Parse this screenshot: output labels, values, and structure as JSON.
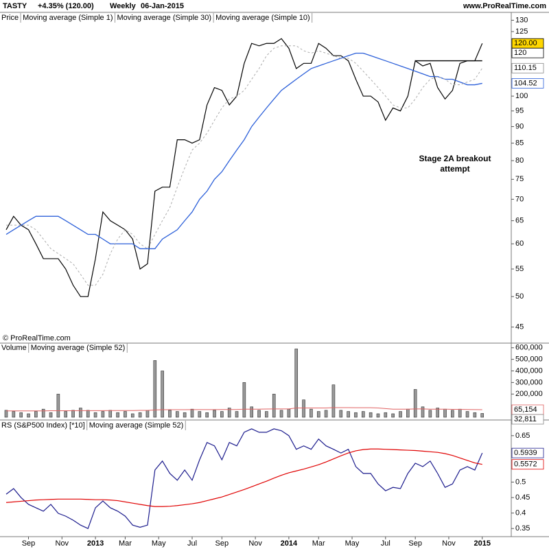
{
  "header": {
    "symbol": "TASTY",
    "change": "+4.35% (120.00)",
    "period": "Weekly",
    "date": "06-Jan-2015",
    "site": "www.ProRealTime.com",
    "copyright": "© ProRealTime.com"
  },
  "chart_data": [
    {
      "type": "line",
      "log": true,
      "xlim": [
        -1.66,
        135.8
      ],
      "ylim": [
        43.9,
        133.6
      ],
      "yticks": [
        45,
        50,
        55,
        60,
        65,
        70,
        75,
        80,
        85,
        90,
        95,
        100,
        115,
        125,
        130
      ],
      "legend": [
        {
          "name": "Price",
          "color": "#000000"
        },
        {
          "name": "Moving average (Simple 1)",
          "color": "#1a1a8c"
        },
        {
          "name": "Moving average (Simple 30)",
          "color": "#2b5fd9"
        },
        {
          "name": "Moving average (Simple 10)",
          "color": "#aaaaaa"
        }
      ],
      "annotation": "Stage 2A breakout attempt",
      "hline": {
        "y": 113,
        "x": [
          110,
          128
        ]
      },
      "last_labels": [
        {
          "value": 120,
          "label": "120.00",
          "color": "#000000",
          "bg": "#ffd700"
        },
        {
          "value": 120,
          "label": "120",
          "color": "#000000",
          "bg": "#ffffff"
        },
        {
          "value": 110.15,
          "label": "110.15",
          "color": "#888888",
          "bg": "#ffffff"
        },
        {
          "value": 104.52,
          "label": "104.52",
          "color": "#2b5fd9",
          "bg": "#ffffff"
        }
      ],
      "x": [
        0,
        2,
        4,
        6,
        8,
        10,
        12,
        14,
        16,
        18,
        20,
        22,
        24,
        26,
        28,
        30,
        32,
        34,
        36,
        38,
        40,
        42,
        44,
        46,
        48,
        50,
        52,
        54,
        56,
        58,
        60,
        62,
        64,
        66,
        68,
        70,
        72,
        74,
        76,
        78,
        80,
        82,
        84,
        86,
        88,
        90,
        92,
        94,
        96,
        98,
        100,
        102,
        104,
        106,
        108,
        110,
        112,
        114,
        116,
        118,
        120,
        122,
        124,
        126,
        128
      ],
      "series": [
        {
          "color": "#000000",
          "width": 1.2,
          "values": [
            63,
            66,
            64,
            63,
            60,
            57,
            57,
            57,
            55,
            52,
            50,
            50,
            57,
            67,
            65,
            64,
            63,
            61,
            55,
            56,
            72,
            73,
            73,
            86,
            86,
            85,
            86,
            97,
            103,
            102,
            97,
            100,
            112,
            120,
            119,
            120,
            120,
            122,
            118,
            110,
            112,
            112,
            120,
            118,
            115,
            115,
            113,
            106,
            100,
            100,
            98,
            92,
            96,
            95,
            100,
            113,
            111,
            112,
            103,
            99,
            102,
            112,
            113,
            113,
            120
          ]
        },
        {
          "color": "#2b5fd9",
          "width": 1.3,
          "values": [
            62,
            63,
            64,
            65,
            66,
            66,
            66,
            66,
            65,
            64,
            63,
            62,
            62,
            61,
            60,
            60,
            60,
            60,
            59,
            59,
            59,
            61,
            62,
            63,
            65,
            67,
            70,
            72,
            75,
            77,
            80,
            83,
            86,
            90,
            93,
            96,
            99,
            102,
            104,
            106,
            108,
            110,
            111,
            112,
            113,
            114,
            115,
            116,
            116,
            115,
            114,
            113,
            112,
            111,
            110,
            109,
            108,
            107,
            107,
            106,
            106,
            105,
            104,
            104,
            104.52
          ]
        },
        {
          "color": "#aaaaaa",
          "width": 1,
          "dash": true,
          "values": [
            64,
            64,
            64,
            64,
            63,
            61,
            59,
            58,
            57,
            56,
            54,
            52,
            52,
            54,
            58,
            61,
            63,
            62,
            60,
            59,
            62,
            65,
            68,
            73,
            78,
            83,
            85,
            88,
            92,
            96,
            99,
            100,
            102,
            106,
            110,
            115,
            118,
            119,
            119,
            119,
            117,
            116,
            117,
            116,
            115,
            114,
            114,
            112,
            109,
            106,
            103,
            100,
            97,
            96,
            96,
            99,
            103,
            106,
            107,
            106,
            104,
            104,
            105,
            106,
            110.15
          ]
        }
      ]
    },
    {
      "type": "bar",
      "xlim": [
        -1.66,
        135.8
      ],
      "ylim": [
        0,
        640000
      ],
      "yticks": [
        {
          "value": 200000,
          "label": "200,000"
        },
        {
          "value": 300000,
          "label": "300,000"
        },
        {
          "value": 400000,
          "label": "400,000"
        },
        {
          "value": 500000,
          "label": "500,000"
        },
        {
          "value": 600000,
          "label": "600,000"
        }
      ],
      "legend": [
        {
          "name": "Volume",
          "color": "#999999"
        },
        {
          "name": "Moving average (Simple 52)",
          "color": "#e06060"
        }
      ],
      "last_labels": [
        {
          "value": 65154,
          "label": "65,154",
          "color": "#e06060",
          "bg": "#ffffff"
        },
        {
          "value": 32811,
          "label": "32,811",
          "color": "#888888",
          "bg": "#ffffff"
        }
      ],
      "x": [
        0,
        2,
        4,
        6,
        8,
        10,
        12,
        14,
        16,
        18,
        20,
        22,
        24,
        26,
        28,
        30,
        32,
        34,
        36,
        38,
        40,
        42,
        44,
        46,
        48,
        50,
        52,
        54,
        56,
        58,
        60,
        62,
        64,
        66,
        68,
        70,
        72,
        74,
        76,
        78,
        80,
        82,
        84,
        86,
        88,
        90,
        92,
        94,
        96,
        98,
        100,
        102,
        104,
        106,
        108,
        110,
        112,
        114,
        116,
        118,
        120,
        122,
        124,
        126,
        128
      ],
      "series": [
        {
          "kind": "bar",
          "color": "#999999",
          "values": [
            60000,
            50000,
            40000,
            30000,
            50000,
            70000,
            40000,
            200000,
            50000,
            60000,
            80000,
            60000,
            40000,
            50000,
            60000,
            40000,
            50000,
            30000,
            40000,
            60000,
            490000,
            400000,
            60000,
            50000,
            40000,
            70000,
            50000,
            40000,
            60000,
            50000,
            80000,
            50000,
            300000,
            90000,
            60000,
            50000,
            200000,
            60000,
            70000,
            590000,
            150000,
            70000,
            50000,
            60000,
            280000,
            60000,
            50000,
            40000,
            50000,
            40000,
            30000,
            40000,
            30000,
            50000,
            70000,
            240000,
            90000,
            60000,
            80000,
            70000,
            60000,
            70000,
            50000,
            40000,
            32811
          ]
        },
        {
          "kind": "line",
          "color": "#e06060",
          "width": 1,
          "values": [
            55000,
            55000,
            55000,
            55000,
            55000,
            55000,
            56000,
            56000,
            56000,
            56000,
            57000,
            57000,
            57000,
            57000,
            58000,
            58000,
            58000,
            58000,
            59000,
            59000,
            63000,
            65000,
            65000,
            65000,
            65000,
            66000,
            66000,
            66000,
            66000,
            67000,
            67000,
            67000,
            70000,
            70000,
            70000,
            71000,
            72000,
            72000,
            72000,
            80000,
            80000,
            80000,
            80000,
            80000,
            83000,
            83000,
            83000,
            82000,
            82000,
            82000,
            80000,
            75000,
            70000,
            70000,
            70000,
            72000,
            72000,
            70000,
            70000,
            70000,
            68000,
            68000,
            67000,
            66000,
            65154
          ]
        }
      ]
    },
    {
      "type": "line",
      "xlim": [
        -1.66,
        135.8
      ],
      "ylim": [
        0.306,
        0.694
      ],
      "yticks": [
        0.35,
        0.4,
        0.45,
        0.5,
        0.65
      ],
      "xticks": [
        {
          "value": 6,
          "label": "Sep"
        },
        {
          "value": 15,
          "label": "Nov"
        },
        {
          "value": 24,
          "label": "2013"
        },
        {
          "value": 32,
          "label": "Mar"
        },
        {
          "value": 41,
          "label": "May"
        },
        {
          "value": 50,
          "label": "Jul"
        },
        {
          "value": 58,
          "label": "Sep"
        },
        {
          "value": 67,
          "label": "Nov"
        },
        {
          "value": 76,
          "label": "2014"
        },
        {
          "value": 84,
          "label": "Mar"
        },
        {
          "value": 93,
          "label": "May"
        },
        {
          "value": 102,
          "label": "Jul"
        },
        {
          "value": 110,
          "label": "Sep"
        },
        {
          "value": 119,
          "label": "Nov"
        },
        {
          "value": 128,
          "label": "2015"
        }
      ],
      "legend": [
        {
          "name": "RS (S&P500 Index) [*10]",
          "color": "#1a1a8c"
        },
        {
          "name": "Moving average (Simple 52)",
          "color": "#e00000"
        }
      ],
      "last_labels": [
        {
          "value": 0.5939,
          "label": "0.5939",
          "color": "#1a1a8c",
          "bg": "#ffffff"
        },
        {
          "value": 0.5572,
          "label": "0.5572",
          "color": "#e00000",
          "bg": "#ffffff"
        }
      ],
      "x": [
        0,
        2,
        4,
        6,
        8,
        10,
        12,
        14,
        16,
        18,
        20,
        22,
        24,
        26,
        28,
        30,
        32,
        34,
        36,
        38,
        40,
        42,
        44,
        46,
        48,
        50,
        52,
        54,
        56,
        58,
        60,
        62,
        64,
        66,
        68,
        70,
        72,
        74,
        76,
        78,
        80,
        82,
        84,
        86,
        88,
        90,
        92,
        94,
        96,
        98,
        100,
        102,
        104,
        106,
        108,
        110,
        112,
        114,
        116,
        118,
        120,
        122,
        124,
        126,
        128
      ],
      "series": [
        {
          "color": "#1a1a8c",
          "width": 1.2,
          "values": [
            0.461,
            0.479,
            0.45,
            0.428,
            0.417,
            0.406,
            0.428,
            0.399,
            0.39,
            0.377,
            0.361,
            0.35,
            0.417,
            0.439,
            0.417,
            0.406,
            0.39,
            0.361,
            0.354,
            0.361,
            0.539,
            0.568,
            0.528,
            0.506,
            0.539,
            0.506,
            0.572,
            0.628,
            0.617,
            0.572,
            0.628,
            0.617,
            0.661,
            0.672,
            0.661,
            0.661,
            0.672,
            0.666,
            0.65,
            0.606,
            0.617,
            0.606,
            0.639,
            0.617,
            0.606,
            0.594,
            0.606,
            0.55,
            0.528,
            0.528,
            0.494,
            0.472,
            0.483,
            0.479,
            0.528,
            0.561,
            0.55,
            0.568,
            0.528,
            0.483,
            0.494,
            0.539,
            0.55,
            0.539,
            0.5939
          ]
        },
        {
          "color": "#e00000",
          "width": 1.2,
          "values": [
            0.434,
            0.436,
            0.438,
            0.44,
            0.442,
            0.443,
            0.444,
            0.445,
            0.445,
            0.445,
            0.445,
            0.444,
            0.443,
            0.443,
            0.442,
            0.44,
            0.436,
            0.432,
            0.428,
            0.424,
            0.421,
            0.421,
            0.422,
            0.424,
            0.427,
            0.43,
            0.434,
            0.44,
            0.446,
            0.452,
            0.46,
            0.468,
            0.476,
            0.485,
            0.494,
            0.503,
            0.513,
            0.522,
            0.53,
            0.536,
            0.542,
            0.549,
            0.556,
            0.565,
            0.575,
            0.585,
            0.594,
            0.601,
            0.605,
            0.607,
            0.607,
            0.606,
            0.605,
            0.604,
            0.603,
            0.602,
            0.6,
            0.598,
            0.596,
            0.592,
            0.586,
            0.578,
            0.57,
            0.562,
            0.5572
          ]
        }
      ]
    }
  ]
}
